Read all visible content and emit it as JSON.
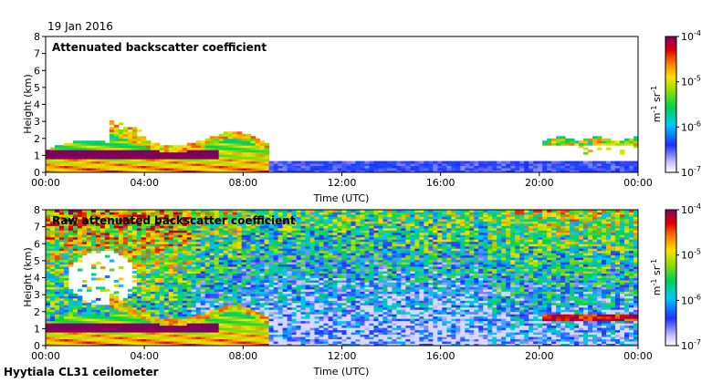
{
  "date": "19 Jan 2016",
  "instrument": "Hyytiala CL31 ceilometer",
  "chart_data": [
    {
      "type": "heatmap",
      "title": "Attenuated backscatter coefficient",
      "xlabel": "Time (UTC)",
      "ylabel": "Height (km)",
      "x_ticks": [
        "00:00",
        "04:00",
        "08:00",
        "12:00",
        "16:00",
        "20:00",
        "00:00"
      ],
      "y_ticks": [
        "0",
        "1",
        "2",
        "3",
        "4",
        "5",
        "6",
        "7",
        "8"
      ],
      "ylim": [
        0,
        8
      ],
      "colorbar": {
        "scale": "log",
        "range": [
          1e-07,
          0.0001
        ],
        "unit_base": "m",
        "unit_base_exp": "-1",
        "unit_sr": "sr",
        "unit_sr_exp": "-1",
        "ticks": [
          {
            "base": "10",
            "exp": "-4"
          },
          {
            "base": "10",
            "exp": "-5"
          },
          {
            "base": "10",
            "exp": "-6"
          },
          {
            "base": "10",
            "exp": "-7"
          }
        ]
      },
      "features": [
        {
          "kind": "boundary_layer_aerosol",
          "time_h": [
            0,
            9
          ],
          "height_km": [
            0,
            2.2
          ]
        },
        {
          "kind": "elevated_layer",
          "time_h": [
            2.5,
            9
          ],
          "height_km": [
            1.4,
            3.4
          ]
        },
        {
          "kind": "low_noise_band",
          "time_h": [
            7,
            24
          ],
          "height_km": [
            0,
            0.7
          ]
        },
        {
          "kind": "cloud_layer",
          "time_h": [
            20.2,
            24
          ],
          "height_km": [
            1.7,
            2.0
          ]
        }
      ]
    },
    {
      "type": "heatmap",
      "title": "Raw attenuated backscatter coefficient",
      "xlabel": "Time (UTC)",
      "ylabel": "Height (km)",
      "x_ticks": [
        "00:00",
        "04:00",
        "08:00",
        "12:00",
        "16:00",
        "20:00",
        "00:00"
      ],
      "y_ticks": [
        "0",
        "1",
        "2",
        "3",
        "4",
        "5",
        "6",
        "7",
        "8"
      ],
      "ylim": [
        0,
        8
      ],
      "colorbar": {
        "scale": "log",
        "range": [
          1e-07,
          0.0001
        ],
        "unit_base": "m",
        "unit_base_exp": "-1",
        "unit_sr": "sr",
        "unit_sr_exp": "-1",
        "ticks": [
          {
            "base": "10",
            "exp": "-4"
          },
          {
            "base": "10",
            "exp": "-5"
          },
          {
            "base": "10",
            "exp": "-6"
          },
          {
            "base": "10",
            "exp": "-7"
          }
        ]
      },
      "features": [
        {
          "kind": "noise_field",
          "time_h": [
            0,
            24
          ],
          "height_km": [
            0,
            8
          ]
        },
        {
          "kind": "boundary_layer_aerosol",
          "time_h": [
            0,
            9
          ],
          "height_km": [
            0,
            2.2
          ]
        },
        {
          "kind": "saturated_patch",
          "time_h": [
            0.9,
            3.7
          ],
          "height_km": [
            2.4,
            5.6
          ]
        },
        {
          "kind": "cloud_layer",
          "time_h": [
            20.2,
            24
          ],
          "height_km": [
            1.5,
            1.9
          ]
        }
      ]
    }
  ]
}
